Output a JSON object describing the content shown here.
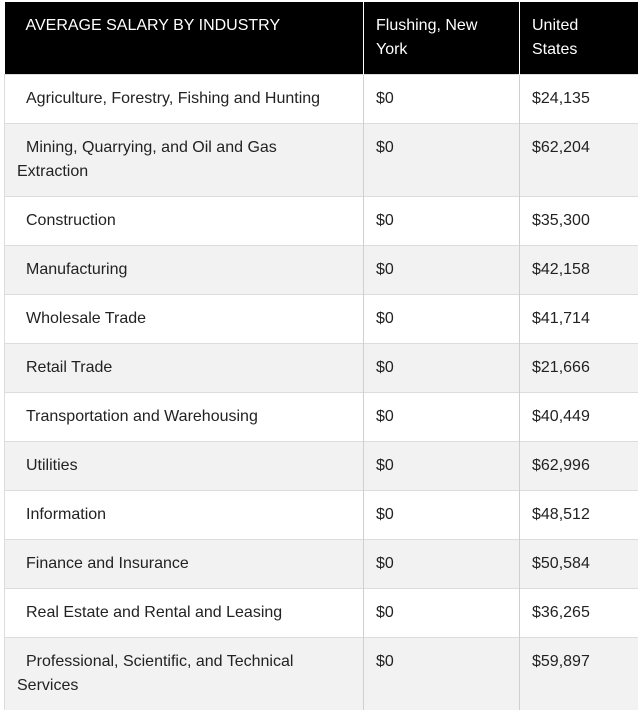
{
  "table": {
    "headers": {
      "industry": "AVERAGE SALARY BY INDUSTRY",
      "flushing": "Flushing, New York",
      "us": "United States"
    },
    "rows": [
      {
        "industry": "Agriculture, Forestry, Fishing and Hunting",
        "flushing": "$0",
        "us": "$24,135"
      },
      {
        "industry": "Mining, Quarrying, and Oil and Gas Extraction",
        "flushing": "$0",
        "us": "$62,204"
      },
      {
        "industry": "Construction",
        "flushing": "$0",
        "us": "$35,300"
      },
      {
        "industry": "Manufacturing",
        "flushing": "$0",
        "us": "$42,158"
      },
      {
        "industry": "Wholesale Trade",
        "flushing": "$0",
        "us": "$41,714"
      },
      {
        "industry": "Retail Trade",
        "flushing": "$0",
        "us": "$21,666"
      },
      {
        "industry": "Transportation and Warehousing",
        "flushing": "$0",
        "us": "$40,449"
      },
      {
        "industry": "Utilities",
        "flushing": "$0",
        "us": "$62,996"
      },
      {
        "industry": "Information",
        "flushing": "$0",
        "us": "$48,512"
      },
      {
        "industry": "Finance and Insurance",
        "flushing": "$0",
        "us": "$50,584"
      },
      {
        "industry": "Real Estate and Rental and Leasing",
        "flushing": "$0",
        "us": "$36,265"
      },
      {
        "industry": "Professional, Scientific, and Technical Services",
        "flushing": "$0",
        "us": "$59,897"
      }
    ]
  }
}
